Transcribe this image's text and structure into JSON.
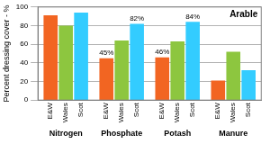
{
  "chart_data": {
    "type": "bar",
    "title": "Arable",
    "y_label": "Percent dressing cover - %",
    "categories": [
      "Nitrogen",
      "Phosphate",
      "Potash",
      "Manure"
    ],
    "series": [
      {
        "name": "E&W",
        "color": "#f26522",
        "values": [
          91,
          45,
          46,
          21
        ],
        "value_labels": [
          null,
          "45%",
          "46%",
          null
        ]
      },
      {
        "name": "Wales",
        "color": "#8dc63f",
        "values": [
          80,
          64,
          63,
          52
        ]
      },
      {
        "name": "Scot",
        "color": "#33ccff",
        "values": [
          94,
          82,
          84,
          32
        ],
        "value_labels": [
          null,
          "82%",
          "84%",
          null
        ]
      }
    ],
    "ylim": [
      0,
      100
    ],
    "yticks": [
      0,
      20,
      40,
      60,
      80,
      100
    ],
    "grid": true,
    "data_labels": true
  }
}
